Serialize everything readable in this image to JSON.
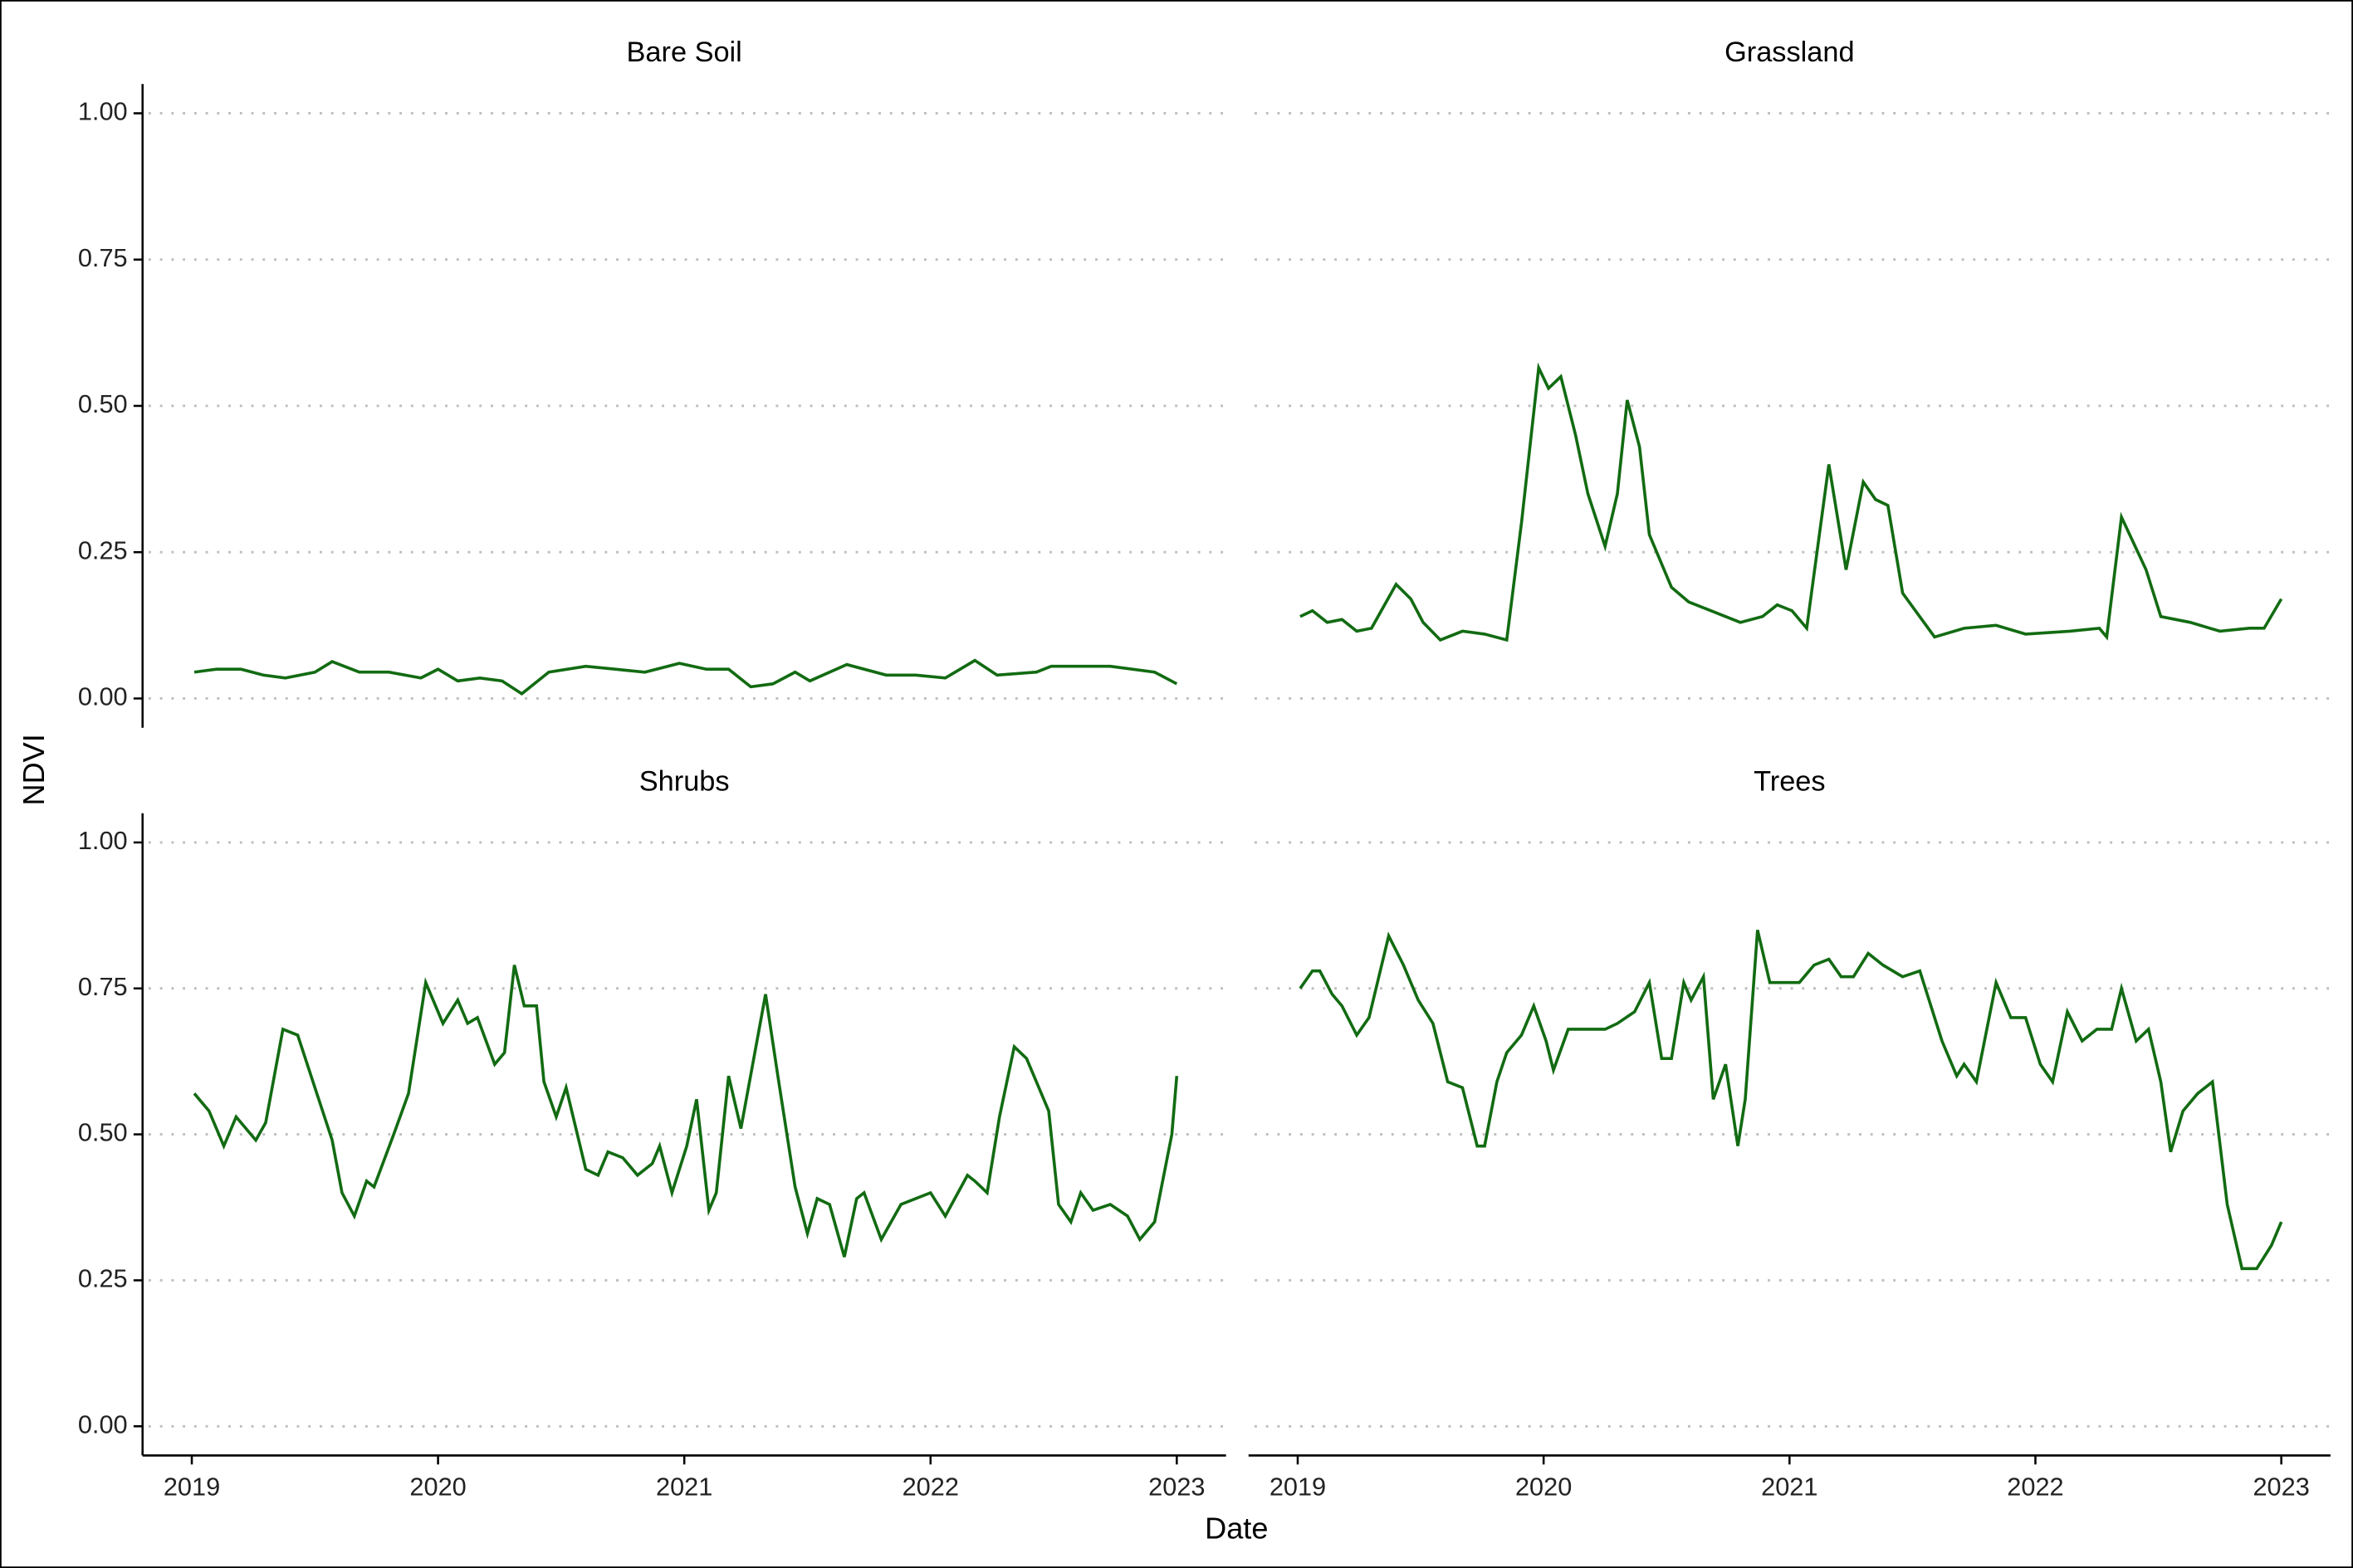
{
  "xlabel": "Date",
  "ylabel": "NDVI",
  "xlim": [
    2018.8,
    2023.2
  ],
  "ylim": [
    -0.05,
    1.05
  ],
  "xticks": [
    2019,
    2020,
    2021,
    2022,
    2023
  ],
  "yticks": [
    {
      "value": 0,
      "label": "0.00"
    },
    {
      "value": 0.25,
      "label": "0.25"
    },
    {
      "value": 0.5,
      "label": "0.50"
    },
    {
      "value": 0.75,
      "label": "0.75"
    },
    {
      "value": 1,
      "label": "1.00"
    }
  ],
  "grid": true,
  "chart_data": [
    {
      "type": "line",
      "title": "Bare Soil",
      "color": "#126b12",
      "x": [
        2019.01,
        2019.1,
        2019.2,
        2019.29,
        2019.38,
        2019.5,
        2019.57,
        2019.68,
        2019.8,
        2019.93,
        2020.0,
        2020.08,
        2020.17,
        2020.26,
        2020.34,
        2020.45,
        2020.6,
        2020.72,
        2020.84,
        2020.98,
        2021.09,
        2021.18,
        2021.27,
        2021.36,
        2021.45,
        2021.51,
        2021.66,
        2021.82,
        2021.94,
        2022.06,
        2022.18,
        2022.27,
        2022.43,
        2022.49,
        2022.73,
        2022.91,
        2023.0
      ],
      "values": [
        0.045,
        0.05,
        0.05,
        0.04,
        0.035,
        0.045,
        0.063,
        0.045,
        0.045,
        0.035,
        0.05,
        0.03,
        0.035,
        0.03,
        0.008,
        0.045,
        0.055,
        0.05,
        0.045,
        0.06,
        0.05,
        0.05,
        0.02,
        0.025,
        0.045,
        0.03,
        0.058,
        0.04,
        0.04,
        0.035,
        0.065,
        0.04,
        0.045,
        0.055,
        0.055,
        0.045,
        0.025
      ]
    },
    {
      "type": "line",
      "title": "Grassland",
      "color": "#126b12",
      "x": [
        2019.01,
        2019.06,
        2019.12,
        2019.18,
        2019.24,
        2019.3,
        2019.4,
        2019.46,
        2019.51,
        2019.58,
        2019.67,
        2019.76,
        2019.85,
        2019.91,
        2019.98,
        2020.02,
        2020.07,
        2020.13,
        2020.18,
        2020.25,
        2020.3,
        2020.34,
        2020.39,
        2020.43,
        2020.52,
        2020.59,
        2020.68,
        2020.8,
        2020.89,
        2020.95,
        2021.01,
        2021.07,
        2021.16,
        2021.23,
        2021.3,
        2021.35,
        2021.4,
        2021.46,
        2021.59,
        2021.71,
        2021.84,
        2021.96,
        2022.14,
        2022.26,
        2022.29,
        2022.35,
        2022.45,
        2022.51,
        2022.63,
        2022.75,
        2022.87,
        2022.93,
        2023.0
      ],
      "values": [
        0.14,
        0.15,
        0.13,
        0.135,
        0.115,
        0.12,
        0.195,
        0.17,
        0.13,
        0.1,
        0.115,
        0.11,
        0.1,
        0.3,
        0.565,
        0.53,
        0.55,
        0.45,
        0.35,
        0.26,
        0.35,
        0.51,
        0.43,
        0.28,
        0.19,
        0.165,
        0.15,
        0.13,
        0.14,
        0.16,
        0.15,
        0.12,
        0.4,
        0.22,
        0.37,
        0.34,
        0.33,
        0.18,
        0.105,
        0.12,
        0.125,
        0.11,
        0.115,
        0.12,
        0.105,
        0.31,
        0.22,
        0.14,
        0.13,
        0.115,
        0.12,
        0.12,
        0.17
      ]
    },
    {
      "type": "line",
      "title": "Shrubs",
      "color": "#126b12",
      "x": [
        2019.01,
        2019.07,
        2019.13,
        2019.18,
        2019.26,
        2019.3,
        2019.37,
        2019.43,
        2019.5,
        2019.57,
        2019.61,
        2019.66,
        2019.71,
        2019.74,
        2019.82,
        2019.88,
        2019.95,
        2020.02,
        2020.08,
        2020.12,
        2020.16,
        2020.23,
        2020.27,
        2020.31,
        2020.35,
        2020.4,
        2020.43,
        2020.48,
        2020.52,
        2020.6,
        2020.65,
        2020.69,
        2020.75,
        2020.81,
        2020.87,
        2020.9,
        2020.95,
        2021.01,
        2021.05,
        2021.1,
        2021.13,
        2021.18,
        2021.23,
        2021.33,
        2021.38,
        2021.45,
        2021.5,
        2021.54,
        2021.59,
        2021.65,
        2021.7,
        2021.73,
        2021.8,
        2021.88,
        2022.0,
        2022.06,
        2022.15,
        2022.18,
        2022.23,
        2022.28,
        2022.34,
        2022.39,
        2022.48,
        2022.52,
        2022.57,
        2022.61,
        2022.66,
        2022.73,
        2022.8,
        2022.85,
        2022.91,
        2022.98,
        2023.0
      ],
      "values": [
        0.57,
        0.54,
        0.48,
        0.53,
        0.49,
        0.52,
        0.68,
        0.67,
        0.58,
        0.49,
        0.4,
        0.36,
        0.42,
        0.41,
        0.5,
        0.57,
        0.76,
        0.69,
        0.73,
        0.69,
        0.7,
        0.62,
        0.64,
        0.79,
        0.72,
        0.72,
        0.59,
        0.53,
        0.58,
        0.44,
        0.43,
        0.47,
        0.46,
        0.43,
        0.45,
        0.48,
        0.4,
        0.48,
        0.56,
        0.37,
        0.4,
        0.6,
        0.51,
        0.74,
        0.6,
        0.41,
        0.33,
        0.39,
        0.38,
        0.29,
        0.39,
        0.4,
        0.32,
        0.38,
        0.4,
        0.36,
        0.43,
        0.42,
        0.4,
        0.53,
        0.65,
        0.63,
        0.54,
        0.38,
        0.35,
        0.4,
        0.37,
        0.38,
        0.36,
        0.32,
        0.35,
        0.5,
        0.6
      ]
    },
    {
      "type": "line",
      "title": "Trees",
      "color": "#126b12",
      "x": [
        2019.01,
        2019.06,
        2019.09,
        2019.14,
        2019.18,
        2019.24,
        2019.29,
        2019.37,
        2019.43,
        2019.49,
        2019.55,
        2019.61,
        2019.67,
        2019.73,
        2019.76,
        2019.81,
        2019.85,
        2019.91,
        2019.96,
        2020.01,
        2020.04,
        2020.1,
        2020.19,
        2020.25,
        2020.3,
        2020.37,
        2020.43,
        2020.48,
        2020.52,
        2020.57,
        2020.6,
        2020.65,
        2020.69,
        2020.74,
        2020.79,
        2020.82,
        2020.87,
        2020.92,
        2020.98,
        2021.04,
        2021.1,
        2021.16,
        2021.21,
        2021.26,
        2021.32,
        2021.38,
        2021.46,
        2021.53,
        2021.62,
        2021.68,
        2021.71,
        2021.76,
        2021.84,
        2021.9,
        2021.96,
        2022.02,
        2022.07,
        2022.13,
        2022.19,
        2022.25,
        2022.31,
        2022.35,
        2022.41,
        2022.46,
        2022.51,
        2022.55,
        2022.6,
        2022.66,
        2022.72,
        2022.78,
        2022.84,
        2022.9,
        2022.96,
        2023.0
      ],
      "values": [
        0.75,
        0.78,
        0.78,
        0.74,
        0.72,
        0.67,
        0.7,
        0.84,
        0.79,
        0.73,
        0.69,
        0.59,
        0.58,
        0.48,
        0.48,
        0.59,
        0.64,
        0.67,
        0.72,
        0.66,
        0.61,
        0.68,
        0.68,
        0.68,
        0.69,
        0.71,
        0.76,
        0.63,
        0.63,
        0.76,
        0.73,
        0.77,
        0.56,
        0.62,
        0.48,
        0.56,
        0.85,
        0.76,
        0.76,
        0.76,
        0.79,
        0.8,
        0.77,
        0.77,
        0.81,
        0.79,
        0.77,
        0.78,
        0.66,
        0.6,
        0.62,
        0.59,
        0.76,
        0.7,
        0.7,
        0.62,
        0.59,
        0.71,
        0.66,
        0.68,
        0.68,
        0.75,
        0.66,
        0.68,
        0.59,
        0.47,
        0.54,
        0.57,
        0.59,
        0.38,
        0.27,
        0.27,
        0.31,
        0.35
      ]
    }
  ]
}
